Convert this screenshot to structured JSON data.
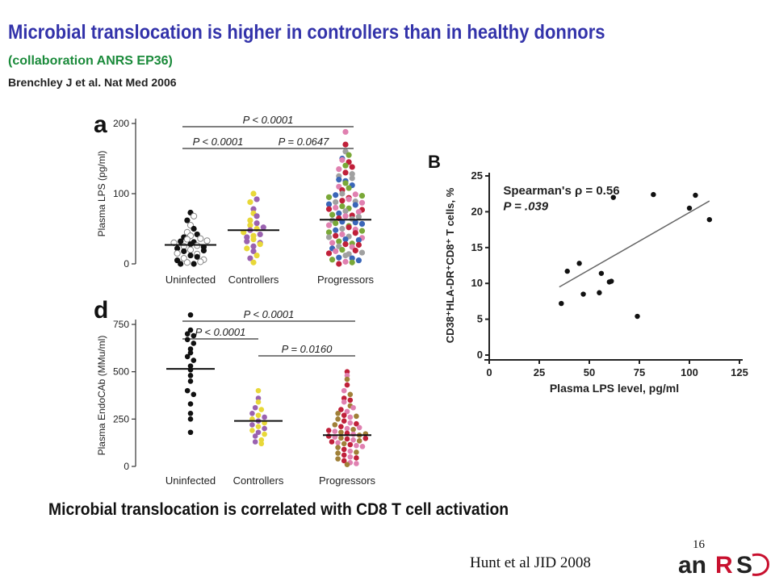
{
  "slide": {
    "title": "Microbial translocation is higher in controllers than in healthy donnors",
    "subtitle": "(collaboration ANRS EP36)",
    "citation": "Brenchley J et al. Nat Med 2006",
    "caption": "Microbial translocation is correlated with CD8 T cell activation",
    "page_number": "16",
    "reference": "Hunt et al JID 2008",
    "logo_text": "anRS"
  },
  "chart_data": [
    {
      "type": "scatter",
      "panel_label": "a",
      "ylabel": "Plasma LPS (pg/ml)",
      "ylim": [
        0,
        200
      ],
      "yticks": [
        0,
        100,
        200
      ],
      "categories": [
        "Uninfected",
        "Controllers",
        "Progressors"
      ],
      "medians": [
        27,
        48,
        63
      ],
      "brackets": [
        {
          "from": 0,
          "to": 2,
          "label": "P < 0.0001"
        },
        {
          "from": 0,
          "to": 1,
          "label": "P < 0.0001"
        },
        {
          "from": 1,
          "to": 2,
          "label": "P = 0.0647"
        }
      ],
      "groups": [
        {
          "name": "Uninfected",
          "values": [
            0,
            2,
            5,
            8,
            12,
            15,
            18,
            20,
            22,
            25,
            28,
            30,
            32,
            35,
            38,
            40,
            0,
            3,
            10,
            14,
            19,
            26,
            31,
            36,
            42,
            45,
            50,
            55,
            62,
            68,
            73,
            6,
            24,
            33
          ],
          "colors": [
            "#111111",
            "#ffffff"
          ]
        },
        {
          "name": "Controllers",
          "values": [
            2,
            8,
            12,
            18,
            22,
            25,
            28,
            32,
            35,
            38,
            40,
            42,
            45,
            48,
            50,
            52,
            55,
            58,
            62,
            68,
            72,
            78,
            88,
            92,
            100,
            30
          ],
          "colors": [
            "#e8d838",
            "#9a62b0"
          ]
        },
        {
          "name": "Progressors",
          "values": [
            0,
            3,
            6,
            9,
            12,
            15,
            18,
            20,
            22,
            25,
            28,
            30,
            32,
            35,
            38,
            40,
            42,
            45,
            48,
            50,
            52,
            55,
            58,
            60,
            62,
            65,
            68,
            70,
            72,
            75,
            78,
            80,
            82,
            85,
            88,
            90,
            92,
            95,
            98,
            100,
            105,
            110,
            115,
            120,
            125,
            130,
            135,
            140,
            150,
            160,
            170,
            188,
            2,
            8,
            14,
            19,
            24,
            29,
            34,
            39,
            44,
            49,
            54,
            59,
            64,
            69,
            74,
            79,
            84,
            89,
            94,
            99,
            108,
            118,
            128,
            138,
            148,
            155,
            5,
            16,
            27,
            37,
            47,
            57,
            67,
            77,
            87,
            97,
            112,
            122,
            145
          ],
          "colors": [
            "#c0203a",
            "#e080b0",
            "#7aa838",
            "#3a66b8",
            "#a0a0a0"
          ]
        }
      ]
    },
    {
      "type": "scatter",
      "panel_label": "d",
      "ylabel": "Plasma EndoCAb (MMu/ml)",
      "ylim": [
        0,
        750
      ],
      "yticks": [
        0,
        250,
        500,
        750
      ],
      "categories": [
        "Uninfected",
        "Controllers",
        "Progressors"
      ],
      "medians": [
        515,
        240,
        165
      ],
      "brackets": [
        {
          "from": 0,
          "to": 2,
          "label": "P < 0.0001"
        },
        {
          "from": 0,
          "to": 1,
          "label": "P < 0.0001"
        },
        {
          "from": 1,
          "to": 2,
          "label": "P = 0.0160"
        }
      ],
      "groups": [
        {
          "name": "Uninfected",
          "values": [
            800,
            720,
            700,
            690,
            670,
            650,
            620,
            600,
            580,
            560,
            530,
            510,
            480,
            450,
            400,
            380,
            330,
            280,
            250,
            180
          ],
          "colors": [
            "#111111"
          ]
        },
        {
          "name": "Controllers",
          "values": [
            400,
            360,
            340,
            310,
            300,
            280,
            270,
            260,
            250,
            240,
            230,
            220,
            210,
            200,
            190,
            180,
            170,
            160,
            140,
            130,
            120
          ],
          "colors": [
            "#e8d838",
            "#9a62b0"
          ]
        },
        {
          "name": "Progressors",
          "values": [
            500,
            480,
            460,
            430,
            400,
            380,
            360,
            340,
            320,
            300,
            290,
            280,
            270,
            260,
            250,
            240,
            230,
            220,
            210,
            200,
            195,
            190,
            185,
            180,
            175,
            170,
            165,
            160,
            155,
            150,
            145,
            140,
            135,
            130,
            125,
            120,
            115,
            110,
            100,
            90,
            80,
            70,
            60,
            50,
            40,
            30,
            20,
            10,
            350,
            310,
            265,
            225,
            205,
            172,
            148,
            105,
            75,
            45,
            15
          ],
          "colors": [
            "#c0203a",
            "#e080b0",
            "#a08038"
          ]
        }
      ]
    },
    {
      "type": "scatter",
      "panel_label": "B",
      "title": "Spearman's ρ = 0.56",
      "annotation": "P = .039",
      "xlabel": "Plasma LPS level, pg/ml",
      "ylabel": "CD38⁺HLA-DR⁺CD8⁺ T cells, %",
      "xlim": [
        0,
        125
      ],
      "ylim": [
        0,
        25
      ],
      "xticks": [
        0,
        25,
        50,
        75,
        100,
        125
      ],
      "yticks": [
        0,
        5,
        10,
        15,
        20,
        25
      ],
      "points": [
        {
          "x": 36,
          "y": 7.2
        },
        {
          "x": 39,
          "y": 11.7
        },
        {
          "x": 45,
          "y": 12.8
        },
        {
          "x": 47,
          "y": 8.5
        },
        {
          "x": 55,
          "y": 8.7
        },
        {
          "x": 56,
          "y": 11.4
        },
        {
          "x": 60,
          "y": 10.2
        },
        {
          "x": 61,
          "y": 10.3
        },
        {
          "x": 62,
          "y": 22
        },
        {
          "x": 74,
          "y": 5.4
        },
        {
          "x": 82,
          "y": 22.4
        },
        {
          "x": 100,
          "y": 20.5
        },
        {
          "x": 103,
          "y": 22.3
        },
        {
          "x": 110,
          "y": 18.9
        }
      ],
      "fit_line": {
        "x": [
          35,
          110
        ],
        "y": [
          9.5,
          21.5
        ]
      }
    }
  ]
}
